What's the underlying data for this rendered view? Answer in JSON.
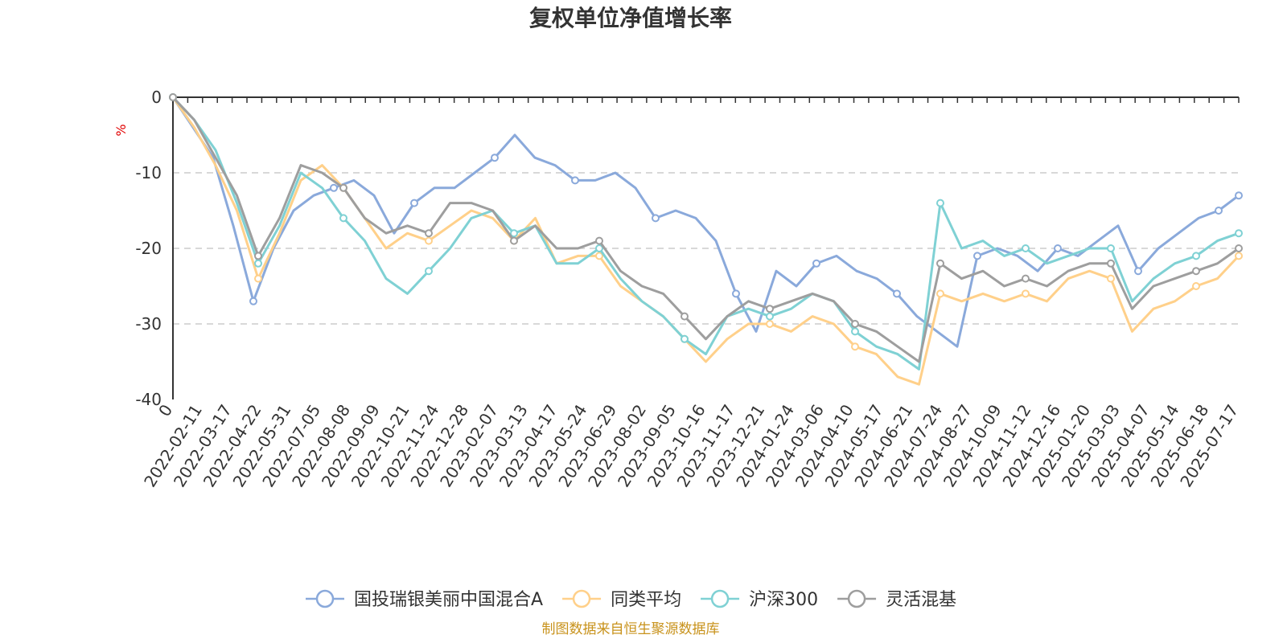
{
  "chart_data": {
    "type": "line",
    "title": "复权单位净值增长率",
    "y_unit": "%",
    "ylim": [
      -40,
      0
    ],
    "y_ticks": [
      "0",
      "-10",
      "-20",
      "-30",
      "-40"
    ],
    "grid": "horizontal dashed",
    "legend_position": "bottom-center",
    "x_tick_labels": [
      "0",
      "2022-02-11",
      "2022-03-17",
      "2022-04-22",
      "2022-05-31",
      "2022-07-05",
      "2022-08-08",
      "2022-09-09",
      "2022-10-21",
      "2022-11-24",
      "2022-12-28",
      "2023-02-07",
      "2023-03-13",
      "2023-04-17",
      "2023-05-24",
      "2023-06-29",
      "2023-08-02",
      "2023-09-05",
      "2023-10-16",
      "2023-11-17",
      "2023-12-21",
      "2024-01-24",
      "2024-03-06",
      "2024-04-10",
      "2024-05-17",
      "2024-06-21",
      "2024-07-24",
      "2024-08-27",
      "2024-10-09",
      "2024-11-12",
      "2024-12-16",
      "2025-01-20",
      "2025-03-03",
      "2025-04-07",
      "2025-05-14",
      "2025-06-18",
      "2025-07-17"
    ],
    "series": [
      {
        "name": "国投瑞银美丽中国混合A",
        "color": "#8aa9db",
        "values": [
          0,
          -4,
          -8,
          -17,
          -27,
          -20,
          -15,
          -13,
          -12,
          -11,
          -13,
          -18,
          -14,
          -12,
          -12,
          -10,
          -8,
          -5,
          -8,
          -9,
          -11,
          -11,
          -10,
          -12,
          -16,
          -15,
          -16,
          -19,
          -26,
          -31,
          -23,
          -25,
          -22,
          -21,
          -23,
          -24,
          -26,
          -29,
          -31,
          -33,
          -21,
          -20,
          -21,
          -23,
          -20,
          -21,
          -19,
          -17,
          -23,
          -20,
          -18,
          -16,
          -15,
          -13
        ]
      },
      {
        "name": "同类平均",
        "color": "#ffd08a",
        "values": [
          0,
          -4,
          -9,
          -15,
          -24,
          -18,
          -11,
          -9,
          -12,
          -16,
          -20,
          -18,
          -19,
          -17,
          -15,
          -16,
          -19,
          -16,
          -22,
          -21,
          -21,
          -25,
          -27,
          -29,
          -32,
          -35,
          -32,
          -30,
          -30,
          -31,
          -29,
          -30,
          -33,
          -34,
          -37,
          -38,
          -26,
          -27,
          -26,
          -27,
          -26,
          -27,
          -24,
          -23,
          -24,
          -31,
          -28,
          -27,
          -25,
          -24,
          -21
        ]
      },
      {
        "name": "沪深300",
        "color": "#7fd1d4",
        "values": [
          0,
          -3,
          -7,
          -14,
          -22,
          -17,
          -10,
          -12,
          -16,
          -19,
          -24,
          -26,
          -23,
          -20,
          -16,
          -15,
          -18,
          -17,
          -22,
          -22,
          -20,
          -24,
          -27,
          -29,
          -32,
          -34,
          -29,
          -28,
          -29,
          -28,
          -26,
          -27,
          -31,
          -33,
          -34,
          -36,
          -14,
          -20,
          -19,
          -21,
          -20,
          -22,
          -21,
          -20,
          -20,
          -27,
          -24,
          -22,
          -21,
          -19,
          -18
        ]
      },
      {
        "name": "灵活混基",
        "color": "#9e9e9e",
        "values": [
          0,
          -3,
          -8,
          -13,
          -21,
          -16,
          -9,
          -10,
          -12,
          -16,
          -18,
          -17,
          -18,
          -14,
          -14,
          -15,
          -19,
          -17,
          -20,
          -20,
          -19,
          -23,
          -25,
          -26,
          -29,
          -32,
          -29,
          -27,
          -28,
          -27,
          -26,
          -27,
          -30,
          -31,
          -33,
          -35,
          -22,
          -24,
          -23,
          -25,
          -24,
          -25,
          -23,
          -22,
          -22,
          -28,
          -25,
          -24,
          -23,
          -22,
          -20
        ]
      }
    ]
  },
  "legend": {
    "items": [
      "国投瑞银美丽中国混合A",
      "同类平均",
      "沪深300",
      "灵活混基"
    ]
  },
  "source_text": "制图数据来自恒生聚源数据库"
}
